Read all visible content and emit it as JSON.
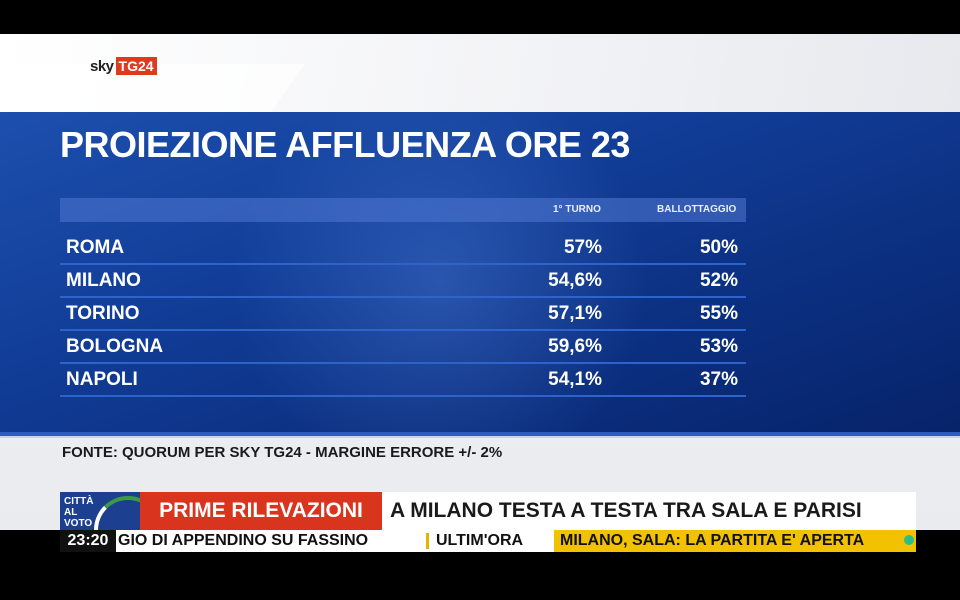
{
  "header": {
    "logo_sky": "sky",
    "logo_tg24": "TG24"
  },
  "panel": {
    "title": "PROIEZIONE AFFLUENZA ORE 23",
    "columns": {
      "first_round": "1° TURNO",
      "runoff": "BALLOTTAGGIO"
    },
    "rows": [
      {
        "city": "ROMA",
        "first_round": "57%",
        "runoff": "50%"
      },
      {
        "city": "MILANO",
        "first_round": "54,6%",
        "runoff": "52%"
      },
      {
        "city": "TORINO",
        "first_round": "57,1%",
        "runoff": "55%"
      },
      {
        "city": "BOLOGNA",
        "first_round": "59,6%",
        "runoff": "53%"
      },
      {
        "city": "NAPOLI",
        "first_round": "54,1%",
        "runoff": "37%"
      }
    ],
    "source": "FONTE: QUORUM PER SKY TG24 - MARGINE ERRORE +/- 2%"
  },
  "ticker": {
    "badge": "CITTÀ AL VOTO",
    "label": "PRIME RILEVAZIONI",
    "headline": "A MILANO TESTA A TESTA TRA SALA E PARISI",
    "time": "23:20",
    "crawl_previous": "GIO DI APPENDINO SU FASSINO",
    "crawl_section": "ULTIM'ORA",
    "crawl_current": "MILANO, SALA: LA PARTITA E' APERTA",
    "colors": {
      "label_red": "#d9351e",
      "crawl_yellow": "#f2c200",
      "panel_blue": "#123f9a"
    }
  }
}
